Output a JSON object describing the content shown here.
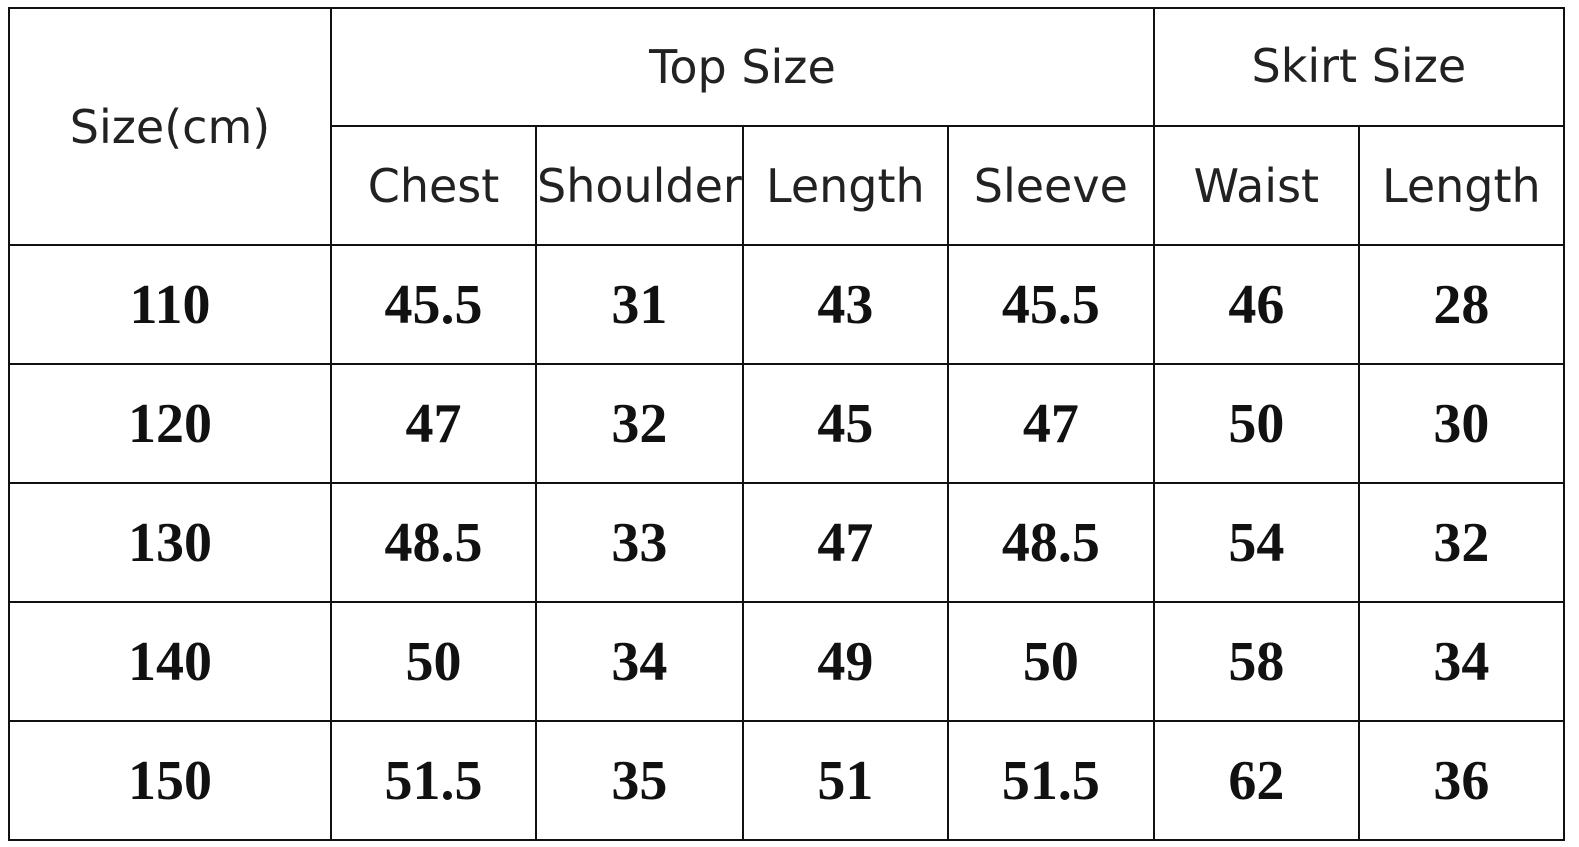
{
  "table": {
    "header": {
      "size_label": "Size(cm)",
      "groups": [
        "Top Size",
        "Skirt Size"
      ],
      "columns": [
        "Chest",
        "Shoulder",
        "Length",
        "Sleeve",
        "Waist",
        "Length"
      ]
    },
    "rows": [
      [
        110,
        45.5,
        31,
        43,
        45.5,
        46,
        28
      ],
      [
        120,
        47,
        32,
        45,
        47,
        50,
        30
      ],
      [
        130,
        48.5,
        33,
        47,
        48.5,
        54,
        32
      ],
      [
        140,
        50,
        34,
        49,
        50,
        58,
        34
      ],
      [
        150,
        51.5,
        35,
        51,
        51.5,
        62,
        36
      ]
    ]
  }
}
